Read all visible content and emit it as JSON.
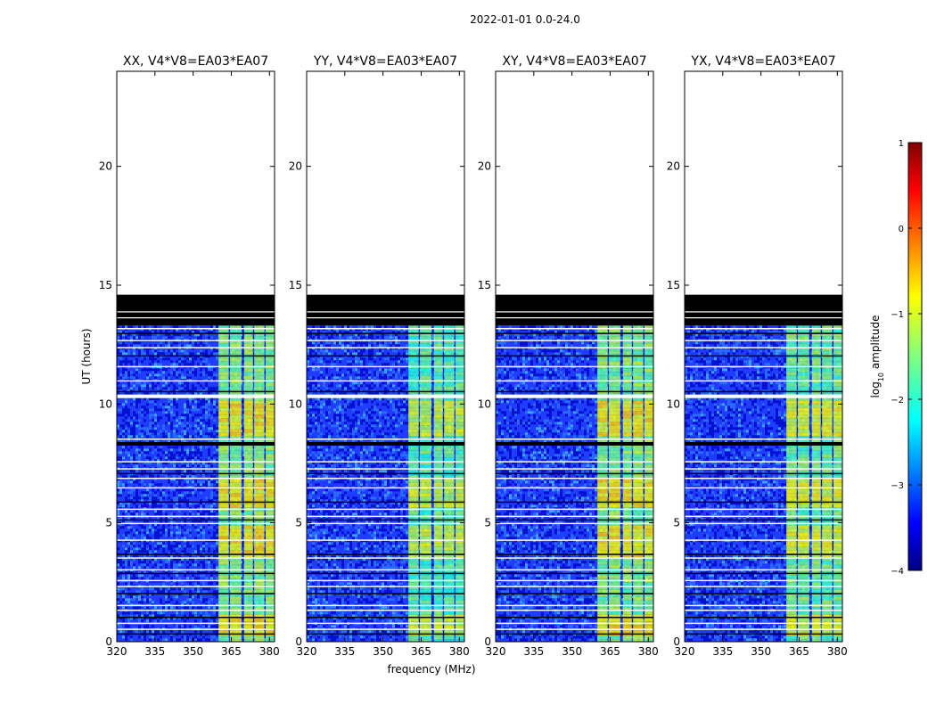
{
  "chart_data": {
    "type": "heatmap",
    "suptitle": "2022-01-01 0.0-24.0",
    "xlabel": "frequency (MHz)",
    "ylabel": "UT (hours)",
    "xlim": [
      320,
      382
    ],
    "ylim": [
      0,
      24
    ],
    "xticks": [
      320,
      335,
      350,
      365,
      380
    ],
    "yticks": [
      0,
      5,
      10,
      15,
      20
    ],
    "panels": [
      {
        "title": "XX, V4*V8=EA03*EA07",
        "signal_scale": 1.0
      },
      {
        "title": "YY, V4*V8=EA03*EA07",
        "signal_scale": 0.9
      },
      {
        "title": "XY, V4*V8=EA03*EA07",
        "signal_scale": 1.0
      },
      {
        "title": "YX, V4*V8=EA03*EA07",
        "signal_scale": 0.95
      }
    ],
    "data_time_range_hours": [
      0,
      13.3
    ],
    "flagged_block_hours": [
      [
        13.3,
        14.6
      ]
    ],
    "strong_signal_freq_ranges_mhz": [
      [
        360,
        364
      ],
      [
        364.5,
        369
      ],
      [
        370,
        373.5
      ],
      [
        374,
        378
      ],
      [
        378.5,
        382
      ]
    ],
    "bright_time_windows_hours": [
      [
        0.3,
        1.3
      ],
      [
        3.6,
        5.0
      ],
      [
        5.7,
        7.0
      ],
      [
        8.8,
        10.2
      ]
    ],
    "gap_lines_hours": [
      0.35,
      0.55,
      0.8,
      1.05,
      1.35,
      1.55,
      2.05,
      2.35,
      2.6,
      2.9,
      3.05,
      3.55,
      3.7,
      4.3,
      5.0,
      5.15,
      5.3,
      5.6,
      5.9,
      6.5,
      6.9,
      7.1,
      7.3,
      7.6,
      8.4,
      8.55,
      10.4,
      10.55,
      11.0,
      11.6,
      12.05,
      12.4,
      12.7,
      13.0,
      13.2
    ],
    "colorbar": {
      "label": "log10 amplitude",
      "range": [
        -4,
        1
      ],
      "ticks": [
        -4,
        -3,
        -2,
        -1,
        0,
        1
      ],
      "tick_labels": [
        "−4",
        "−3",
        "−2",
        "−1",
        "0",
        "1"
      ],
      "colormap": "jet"
    }
  }
}
